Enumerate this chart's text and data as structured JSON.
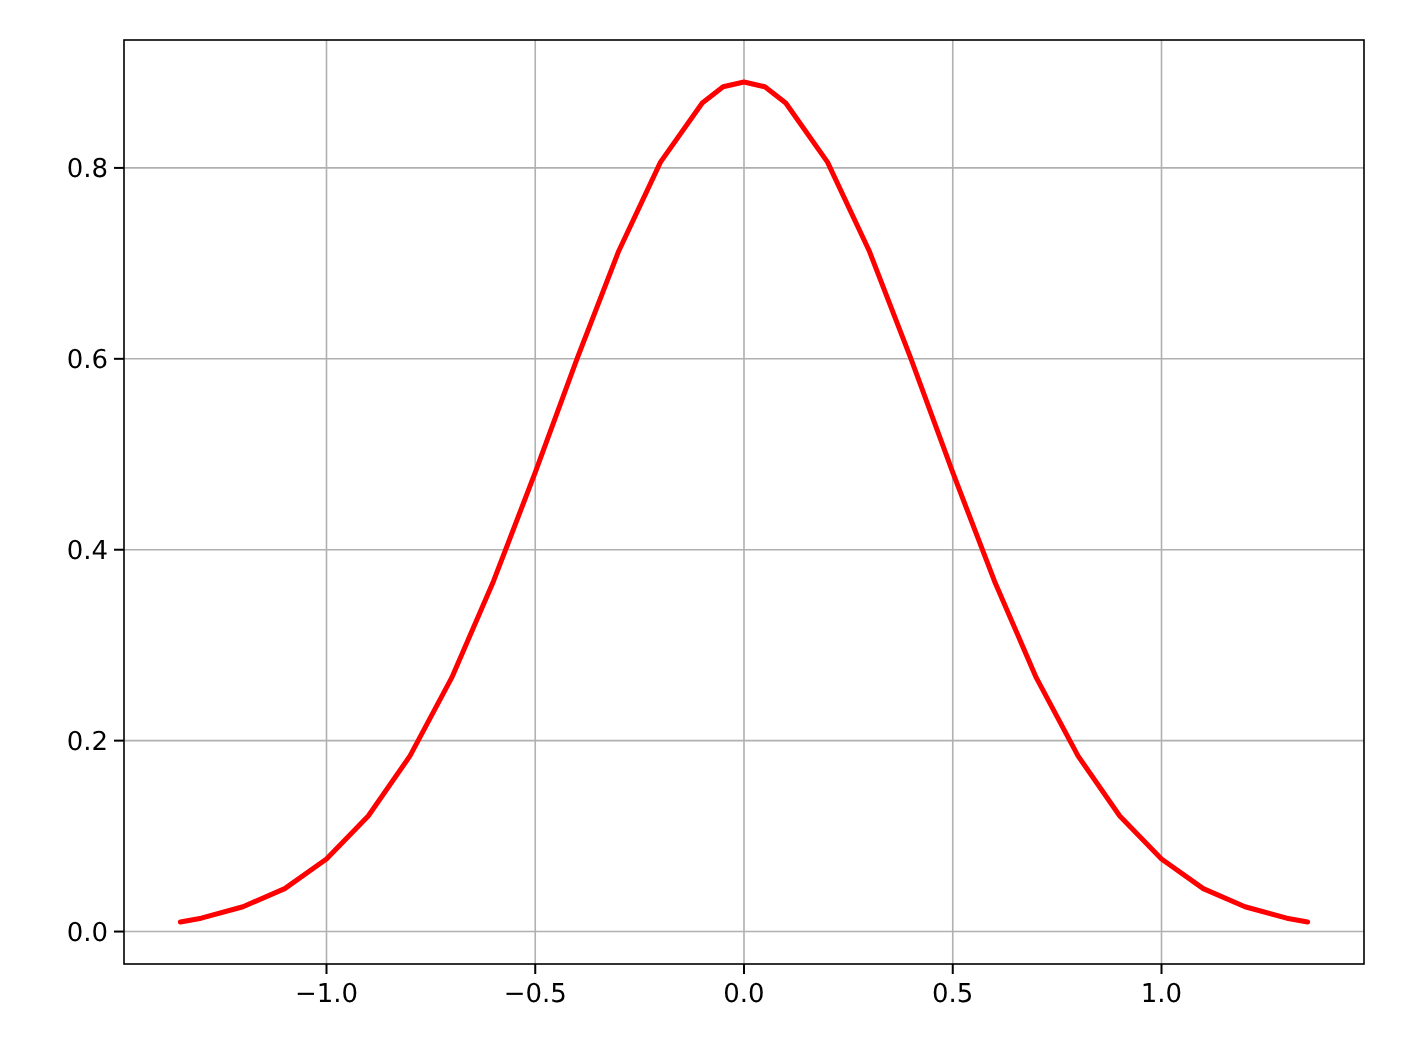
{
  "chart_data": {
    "type": "line",
    "x": [
      -1.35,
      -1.3,
      -1.2,
      -1.1,
      -1.0,
      -0.9,
      -0.8,
      -0.7,
      -0.6,
      -0.5,
      -0.4,
      -0.3,
      -0.2,
      -0.1,
      -0.05,
      0.0,
      0.05,
      0.1,
      0.2,
      0.3,
      0.4,
      0.5,
      0.6,
      0.7,
      0.8,
      0.9,
      1.0,
      1.1,
      1.2,
      1.3,
      1.35
    ],
    "series": [
      {
        "color": "#ff0000",
        "values": [
          0.01,
          0.014,
          0.026,
          0.045,
          0.076,
          0.121,
          0.184,
          0.266,
          0.367,
          0.481,
          0.6,
          0.713,
          0.806,
          0.868,
          0.885,
          0.89,
          0.885,
          0.868,
          0.806,
          0.713,
          0.6,
          0.481,
          0.367,
          0.266,
          0.184,
          0.121,
          0.076,
          0.045,
          0.026,
          0.014,
          0.01
        ]
      }
    ],
    "xlim": [
      -1.485,
      1.485
    ],
    "ylim": [
      -0.034,
      0.934
    ],
    "xticks": [
      {
        "value": -1.0,
        "label": "−1.0"
      },
      {
        "value": -0.5,
        "label": "−0.5"
      },
      {
        "value": 0.0,
        "label": "0.0"
      },
      {
        "value": 0.5,
        "label": "0.5"
      },
      {
        "value": 1.0,
        "label": "1.0"
      }
    ],
    "yticks": [
      {
        "value": 0.0,
        "label": "0.0"
      },
      {
        "value": 0.2,
        "label": "0.2"
      },
      {
        "value": 0.4,
        "label": "0.4"
      },
      {
        "value": 0.6,
        "label": "0.6"
      },
      {
        "value": 0.8,
        "label": "0.8"
      }
    ],
    "grid": true,
    "marker": "none",
    "line_style": "solid"
  }
}
